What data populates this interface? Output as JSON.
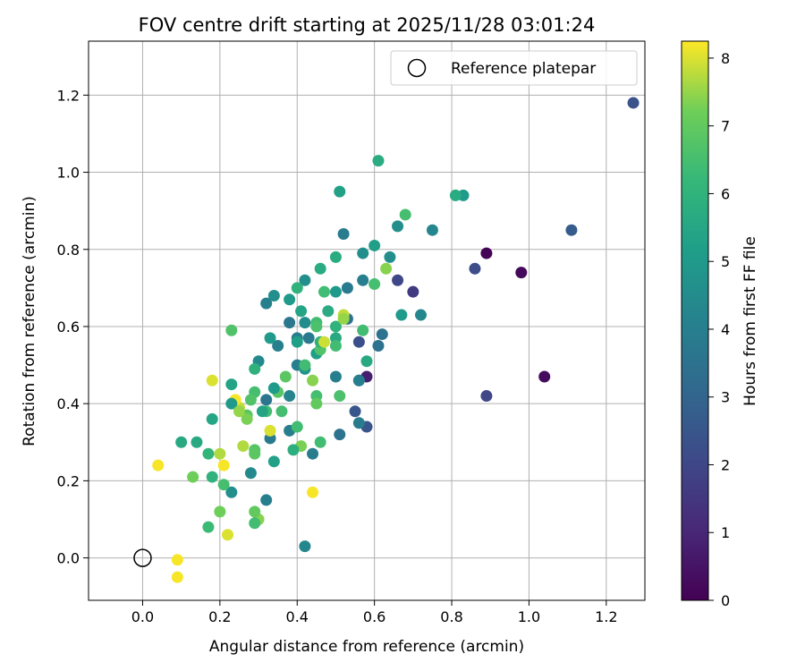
{
  "chart_data": {
    "type": "scatter",
    "title": "FOV centre drift starting at 2025/11/28 03:01:24",
    "xlabel": "Angular distance from reference (arcmin)",
    "ylabel": "Rotation from reference (arcmin)",
    "xlim": [
      -0.14,
      1.3
    ],
    "ylim": [
      -0.11,
      1.34
    ],
    "xticks": [
      0.0,
      0.2,
      0.4,
      0.6,
      0.8,
      1.0,
      1.2
    ],
    "xtick_labels": [
      "0.0",
      "0.2",
      "0.4",
      "0.6",
      "0.8",
      "1.0",
      "1.2"
    ],
    "yticks": [
      0.0,
      0.2,
      0.4,
      0.6,
      0.8,
      1.0,
      1.2
    ],
    "ytick_labels": [
      "0.0",
      "0.2",
      "0.4",
      "0.6",
      "0.8",
      "1.0",
      "1.2"
    ],
    "grid": true,
    "legend": {
      "placement": "top-right",
      "entries": [
        "Reference platepar"
      ]
    },
    "reference_point": {
      "x": 0.0,
      "y": 0.0,
      "name": "Reference platepar"
    },
    "colorbar": {
      "label": "Hours from first FF file",
      "colormap": "viridis",
      "range": [
        0,
        8.25
      ],
      "ticks": [
        0,
        1,
        2,
        3,
        4,
        5,
        6,
        7,
        8
      ],
      "tick_labels": [
        "0",
        "1",
        "2",
        "3",
        "4",
        "5",
        "6",
        "7",
        "8"
      ]
    },
    "series": [
      {
        "points": [
          [
            1.27,
            1.18,
            2.4
          ],
          [
            1.11,
            0.85,
            2.7
          ],
          [
            0.98,
            0.74,
            0.2
          ],
          [
            1.04,
            0.47,
            0.3
          ],
          [
            0.89,
            0.79,
            0.1
          ],
          [
            0.89,
            0.42,
            2.0
          ],
          [
            0.86,
            0.75,
            2.2
          ],
          [
            0.7,
            0.69,
            1.6
          ],
          [
            0.66,
            0.72,
            2.0
          ],
          [
            0.58,
            0.47,
            0.8
          ],
          [
            0.56,
            0.56,
            2.3
          ],
          [
            0.58,
            0.34,
            2.5
          ],
          [
            0.55,
            0.38,
            2.5
          ],
          [
            0.51,
            0.32,
            3.5
          ],
          [
            0.61,
            0.55,
            3.5
          ],
          [
            0.62,
            0.58,
            3.5
          ],
          [
            0.56,
            0.35,
            3.9
          ],
          [
            0.56,
            0.46,
            3.5
          ],
          [
            0.72,
            0.63,
            4.3
          ],
          [
            0.75,
            0.85,
            4.3
          ],
          [
            0.83,
            0.94,
            5.0
          ],
          [
            0.81,
            0.94,
            5.7
          ],
          [
            0.68,
            0.89,
            6.5
          ],
          [
            0.66,
            0.86,
            4.6
          ],
          [
            0.61,
            1.03,
            5.7
          ],
          [
            0.64,
            0.78,
            4.6
          ],
          [
            0.6,
            0.81,
            5.2
          ],
          [
            0.57,
            0.79,
            4.6
          ],
          [
            0.52,
            0.84,
            3.9
          ],
          [
            0.51,
            0.95,
            5.3
          ],
          [
            0.57,
            0.72,
            4.0
          ],
          [
            0.6,
            0.71,
            6.5
          ],
          [
            0.53,
            0.62,
            3.5
          ],
          [
            0.53,
            0.7,
            3.8
          ],
          [
            0.5,
            0.69,
            5.0
          ],
          [
            0.5,
            0.78,
            5.7
          ],
          [
            0.46,
            0.75,
            5.7
          ],
          [
            0.47,
            0.69,
            6.4
          ],
          [
            0.48,
            0.64,
            5.7
          ],
          [
            0.42,
            0.72,
            4.6
          ],
          [
            0.4,
            0.7,
            6.0
          ],
          [
            0.38,
            0.67,
            5.0
          ],
          [
            0.34,
            0.68,
            4.6
          ],
          [
            0.32,
            0.66,
            4.0
          ],
          [
            0.38,
            0.61,
            3.7
          ],
          [
            0.4,
            0.57,
            4.0
          ],
          [
            0.42,
            0.61,
            4.5
          ],
          [
            0.41,
            0.64,
            5.4
          ],
          [
            0.43,
            0.57,
            3.8
          ],
          [
            0.45,
            0.61,
            6.4
          ],
          [
            0.45,
            0.6,
            6.6
          ],
          [
            0.45,
            0.53,
            5.2
          ],
          [
            0.46,
            0.54,
            6.7
          ],
          [
            0.46,
            0.56,
            5.9
          ],
          [
            0.5,
            0.6,
            6.0
          ],
          [
            0.5,
            0.57,
            5.6
          ],
          [
            0.5,
            0.55,
            6.4
          ],
          [
            0.52,
            0.63,
            7.8
          ],
          [
            0.52,
            0.62,
            7.5
          ],
          [
            0.57,
            0.59,
            6.4
          ],
          [
            0.58,
            0.51,
            5.6
          ],
          [
            0.63,
            0.75,
            7.4
          ],
          [
            0.67,
            0.63,
            5.0
          ],
          [
            0.56,
            0.46,
            4.0
          ],
          [
            0.5,
            0.47,
            4.0
          ],
          [
            0.51,
            0.42,
            6.6
          ],
          [
            0.47,
            0.56,
            7.9
          ],
          [
            0.44,
            0.27,
            3.9
          ],
          [
            0.46,
            0.3,
            6.4
          ],
          [
            0.42,
            0.03,
            4.3
          ],
          [
            0.44,
            0.17,
            8.2
          ],
          [
            0.41,
            0.29,
            7.3
          ],
          [
            0.39,
            0.28,
            5.8
          ],
          [
            0.38,
            0.33,
            4.0
          ],
          [
            0.38,
            0.42,
            4.2
          ],
          [
            0.36,
            0.38,
            6.5
          ],
          [
            0.37,
            0.47,
            6.9
          ],
          [
            0.35,
            0.43,
            6.8
          ],
          [
            0.35,
            0.55,
            4.0
          ],
          [
            0.33,
            0.57,
            5.0
          ],
          [
            0.34,
            0.44,
            5.0
          ],
          [
            0.32,
            0.41,
            3.6
          ],
          [
            0.3,
            0.51,
            4.4
          ],
          [
            0.29,
            0.49,
            5.9
          ],
          [
            0.29,
            0.43,
            6.5
          ],
          [
            0.32,
            0.38,
            6.4
          ],
          [
            0.33,
            0.31,
            3.8
          ],
          [
            0.33,
            0.33,
            8.0
          ],
          [
            0.32,
            0.15,
            4.0
          ],
          [
            0.34,
            0.25,
            5.3
          ],
          [
            0.28,
            0.41,
            6.7
          ],
          [
            0.27,
            0.37,
            6.8
          ],
          [
            0.27,
            0.36,
            7.3
          ],
          [
            0.25,
            0.39,
            7.8
          ],
          [
            0.24,
            0.41,
            8.2
          ],
          [
            0.23,
            0.4,
            5.0
          ],
          [
            0.23,
            0.45,
            5.4
          ],
          [
            0.25,
            0.38,
            7.5
          ],
          [
            0.26,
            0.29,
            7.7
          ],
          [
            0.29,
            0.28,
            6.8
          ],
          [
            0.29,
            0.27,
            6.9
          ],
          [
            0.28,
            0.22,
            4.4
          ],
          [
            0.3,
            0.1,
            7.4
          ],
          [
            0.29,
            0.12,
            7.0
          ],
          [
            0.29,
            0.09,
            6.4
          ],
          [
            0.23,
            0.59,
            6.7
          ],
          [
            0.23,
            0.17,
            4.6
          ],
          [
            0.22,
            0.06,
            8.0
          ],
          [
            0.21,
            0.19,
            6.5
          ],
          [
            0.2,
            0.12,
            7.2
          ],
          [
            0.2,
            0.27,
            7.7
          ],
          [
            0.21,
            0.24,
            8.2
          ],
          [
            0.18,
            0.36,
            5.5
          ],
          [
            0.18,
            0.21,
            6.0
          ],
          [
            0.18,
            0.46,
            8.0
          ],
          [
            0.17,
            0.27,
            6.1
          ],
          [
            0.17,
            0.08,
            6.3
          ],
          [
            0.14,
            0.3,
            5.6
          ],
          [
            0.13,
            0.21,
            7.2
          ],
          [
            0.1,
            0.3,
            5.6
          ],
          [
            0.04,
            0.24,
            8.2
          ],
          [
            0.09,
            -0.005,
            8.2
          ],
          [
            0.09,
            -0.05,
            8.2
          ],
          [
            0.4,
            0.5,
            4.0
          ],
          [
            0.4,
            0.56,
            5.2
          ],
          [
            0.42,
            0.49,
            4.8
          ],
          [
            0.42,
            0.5,
            6.4
          ],
          [
            0.44,
            0.46,
            7.4
          ],
          [
            0.45,
            0.42,
            6.5
          ],
          [
            0.45,
            0.4,
            7.0
          ],
          [
            0.4,
            0.34,
            6.4
          ],
          [
            0.31,
            0.38,
            5.4
          ]
        ]
      }
    ]
  }
}
